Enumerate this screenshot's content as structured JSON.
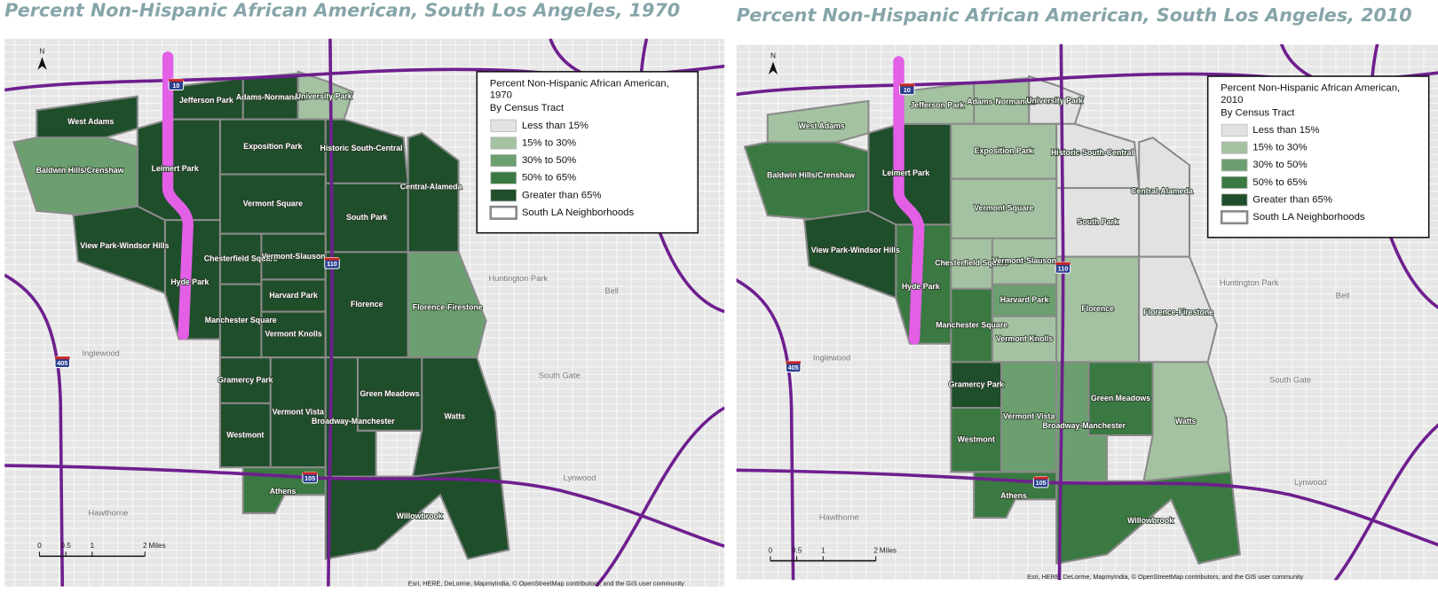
{
  "maps": [
    {
      "title": "Percent Non-Hispanic African American, South Los Angeles, 1970",
      "legend": {
        "title": "Percent Non-Hispanic African American, 1970",
        "subtitle": "By Census Tract",
        "items": [
          "Less than 15%",
          "15% to 30%",
          "30% to 50%",
          "50% to 65%",
          "Greater than 65%",
          "South LA Neighborhoods"
        ]
      },
      "neighborhoods": [
        "West Adams",
        "Baldwin Hills/Crenshaw",
        "View Park-Windsor Hills",
        "Leimert Park",
        "Jefferson Park",
        "Adams-Normandie",
        "University Park",
        "Exposition Park",
        "Historic South-Central",
        "Vermont Square",
        "South Park",
        "Central-Alameda",
        "Hyde Park",
        "Chesterfield Square",
        "Vermont-Slauson",
        "Harvard Park",
        "Manchester Square",
        "Vermont Knolls",
        "Florence",
        "Florence-Firestone",
        "Gramercy Park",
        "Westmont",
        "Vermont Vista",
        "Green Meadows",
        "Broadway-Manchester",
        "Watts",
        "Athens",
        "Willowbrook"
      ],
      "places": [
        "Inglewood",
        "Huntington Park",
        "Bell",
        "South Gate",
        "Lynwood",
        "Hawthorne"
      ],
      "highways": [
        "10",
        "110",
        "405",
        "105"
      ],
      "north": "N",
      "scale": {
        "ticks": [
          0,
          0.5,
          1,
          2
        ],
        "unit": "Miles"
      },
      "attribution": "Esri, HERE, DeLorme, MapmyIndia, © OpenStreetMap contributors, and the GIS user community"
    },
    {
      "title": "Percent Non-Hispanic African American, South Los Angeles, 2010",
      "legend": {
        "title": "Percent Non-Hispanic African American, 2010",
        "subtitle": "By Census Tract",
        "items": [
          "Less than 15%",
          "15% to 30%",
          "30% to 50%",
          "50% to 65%",
          "Greater than 65%",
          "South LA Neighborhoods"
        ]
      },
      "neighborhoods": [
        "West Adams",
        "Baldwin Hills/Crenshaw",
        "View Park-Windsor Hills",
        "Leimert Park",
        "Jefferson Park",
        "Adams-Normandie",
        "University Park",
        "Exposition Park",
        "Historic South-Central",
        "Vermont Square",
        "South Park",
        "Central-Alameda",
        "Hyde Park",
        "Chesterfield Square",
        "Vermont-Slauson",
        "Harvard Park",
        "Manchester Square",
        "Vermont Knolls",
        "Florence",
        "Florence-Firestone",
        "Gramercy Park",
        "Westmont",
        "Vermont Vista",
        "Green Meadows",
        "Broadway-Manchester",
        "Watts",
        "Athens",
        "Willowbrook"
      ],
      "places": [
        "Inglewood",
        "Huntington Park",
        "Bell",
        "South Gate",
        "Lynwood",
        "Hawthorne"
      ],
      "highways": [
        "10",
        "110",
        "405",
        "105"
      ],
      "north": "N",
      "scale": {
        "ticks": [
          0,
          0.5,
          1,
          2
        ],
        "unit": "Miles"
      },
      "attribution": "Esri, HERE, DeLorme, MapmyIndia, © OpenStreetMap contributors, and the GIS user community"
    }
  ]
}
